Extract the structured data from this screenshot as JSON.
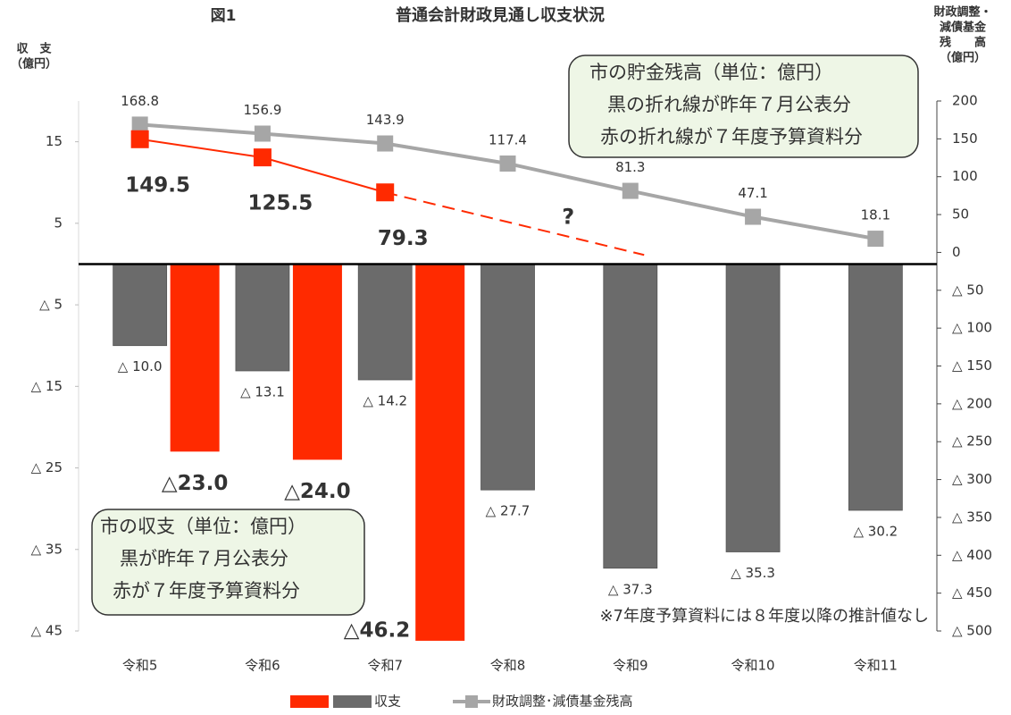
{
  "chart_data": {
    "type": "bar",
    "figure_label": "図1",
    "title": "普通会計財政見通し収支状況",
    "y_label": "収　支",
    "y_unit": "（億円）",
    "y2_label": [
      "財政調整・",
      "減債基金",
      "残　　高",
      "（億円）"
    ],
    "categories": [
      "令和5",
      "令和6",
      "令和7",
      "令和8",
      "令和9",
      "令和10",
      "令和11"
    ],
    "ylim": [
      -45,
      20
    ],
    "yticks": [
      15,
      5,
      {
        "value": -5,
        "label": "△ 5"
      },
      {
        "value": -15,
        "label": "△ 15"
      },
      {
        "value": -25,
        "label": "△ 25"
      },
      {
        "value": -35,
        "label": "△ 35"
      },
      {
        "value": -45,
        "label": "△ 45"
      }
    ],
    "y2lim": [
      -500,
      200
    ],
    "y2ticks": [
      200,
      150,
      100,
      50,
      0,
      {
        "value": -50,
        "label": "△ 50"
      },
      {
        "value": -100,
        "label": "△ 100"
      },
      {
        "value": -150,
        "label": "△ 150"
      },
      {
        "value": -200,
        "label": "△ 200"
      },
      {
        "value": -250,
        "label": "△ 250"
      },
      {
        "value": -300,
        "label": "△ 300"
      },
      {
        "value": -350,
        "label": "△ 350"
      },
      {
        "value": -400,
        "label": "△ 400"
      },
      {
        "value": -450,
        "label": "△ 450"
      },
      {
        "value": -500,
        "label": "△ 500"
      }
    ],
    "series": [
      {
        "type": "bar",
        "color": "#ff2a00",
        "values": [
          -23.0,
          -24.0,
          -46.2,
          null,
          null,
          null,
          null
        ],
        "value_labels": [
          "△23.0",
          "△24.0",
          "△46.2",
          null,
          null,
          null,
          null
        ]
      },
      {
        "type": "bar",
        "name": "収支",
        "color": "#6b6b6b",
        "values": [
          -10.0,
          -13.1,
          -14.2,
          -27.7,
          -37.3,
          -35.3,
          -30.2
        ],
        "value_labels": [
          "△ 10.0",
          "△ 13.1",
          "△ 14.2",
          "△ 27.7",
          "△ 37.3",
          "△ 35.3",
          "△ 30.2"
        ]
      },
      {
        "type": "line",
        "axis": "y2",
        "name": "財政調整･減債基金残高",
        "color": "#a6a6a6",
        "values": [
          168.8,
          156.9,
          143.9,
          117.4,
          81.3,
          47.1,
          18.1
        ]
      },
      {
        "type": "line",
        "axis": "y2",
        "color": "#ff2a00",
        "values": [
          149.5,
          125.5,
          79.3,
          null,
          null,
          null,
          null
        ]
      }
    ],
    "annotations": [
      {
        "lines": [
          {
            "text": "市の貯金残高（単位：億円）",
            "color": "#000000"
          },
          {
            "text": "黒の折れ線が昨年７月公表分",
            "color": "#000000"
          },
          {
            "text": "赤の折れ線が７年度予算資料分",
            "color": "#ff1a00"
          }
        ]
      },
      {
        "lines": [
          {
            "text": "市の収支（単位：億円）",
            "color": "#000000"
          },
          {
            "text": "黒が昨年７月公表分",
            "color": "#000000"
          },
          {
            "text": "赤が７年度予算資料分",
            "color": "#ff1a00"
          }
        ]
      }
    ],
    "question_mark": "?",
    "note": "※7年度予算資料には８年度以降の推計値なし"
  }
}
